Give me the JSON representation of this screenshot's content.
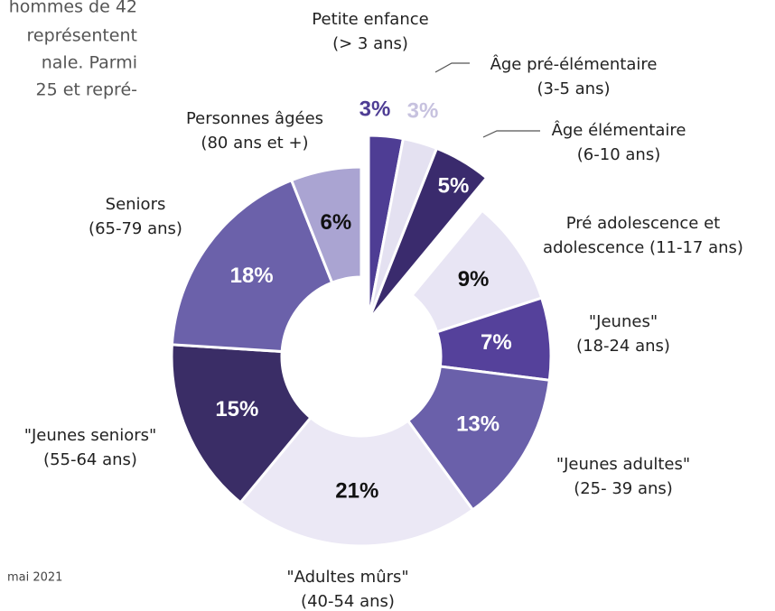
{
  "chart_data": {
    "type": "donut",
    "categories": [
      [
        "Petite enfance",
        "(> 3 ans)"
      ],
      [
        "Âge pré-élémentaire",
        "(3-5 ans)"
      ],
      [
        "Âge élémentaire",
        "(6-10 ans)"
      ],
      [
        "Pré adolescence et",
        "adolescence (11-17 ans)"
      ],
      [
        "\"Jeunes\"",
        "(18-24 ans)"
      ],
      [
        "\"Jeunes adultes\"",
        "(25- 39 ans)"
      ],
      [
        "\"Adultes mûrs\"",
        "(40-54 ans)"
      ],
      [
        "\"Jeunes seniors\"",
        "(55-64 ans)"
      ],
      [
        "Seniors",
        "(65-79 ans)"
      ],
      [
        "Personnes âgées",
        "(80 ans et +)"
      ]
    ],
    "values": [
      3,
      3,
      5,
      9,
      7,
      13,
      21,
      15,
      18,
      6
    ],
    "value_labels": [
      "3%",
      "3%",
      "5%",
      "9%",
      "7%",
      "13%",
      "21%",
      "15%",
      "18%",
      "6%"
    ],
    "colors": [
      "#4e3d94",
      "#e4e1f1",
      "#3a2b6d",
      "#e8e5f4",
      "#55419b",
      "#6a60aa",
      "#ebe8f5",
      "#3a2d66",
      "#6b61aa",
      "#aaa4d2"
    ],
    "exploded": [
      true,
      true,
      true,
      false,
      false,
      false,
      false,
      false,
      false,
      false
    ]
  },
  "page_text": {
    "intro_lines": [
      "hommes de 42",
      "représentent",
      "nale. Parmi",
      "25 et repré-"
    ],
    "footer": "mai 2021"
  }
}
